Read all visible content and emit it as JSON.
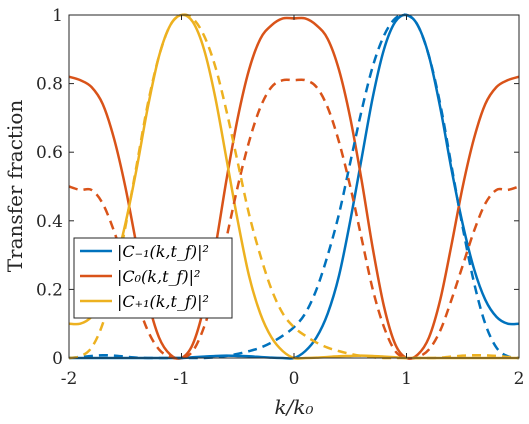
{
  "chart_data": {
    "type": "line",
    "xlabel": "k/k₀",
    "ylabel": "Transfer fraction",
    "xlim": [
      -2,
      2
    ],
    "ylim": [
      0,
      1
    ],
    "x_ticks": [
      -2,
      -1,
      0,
      1,
      2
    ],
    "x_tick_labels": [
      "-2",
      "-1",
      "0",
      "1",
      "2"
    ],
    "y_ticks": [
      0,
      0.2,
      0.4,
      0.6,
      0.8,
      1
    ],
    "y_tick_labels": [
      "0",
      "0.2",
      "0.4",
      "0.6",
      "0.8",
      "1"
    ],
    "grid": false,
    "legend_position": "lower-left",
    "x": [
      -2.0,
      -1.9,
      -1.8,
      -1.7,
      -1.6,
      -1.5,
      -1.4,
      -1.3,
      -1.2,
      -1.1,
      -1.0,
      -0.9,
      -0.8,
      -0.7,
      -0.6,
      -0.5,
      -0.4,
      -0.3,
      -0.2,
      -0.1,
      0.0,
      0.1,
      0.2,
      0.3,
      0.4,
      0.5,
      0.6,
      0.7,
      0.8,
      0.9,
      1.0,
      1.1,
      1.2,
      1.3,
      1.4,
      1.5,
      1.6,
      1.7,
      1.8,
      1.9,
      2.0
    ],
    "series": [
      {
        "name": "|C₋₁(k,t_f)|²",
        "color": "#0072BD",
        "style": "solid",
        "values": [
          0.0,
          0.0,
          0.0,
          0.0,
          0.0,
          0.0,
          0.0,
          0.0,
          0.0,
          0.0,
          0.0,
          0.002,
          0.004,
          0.006,
          0.007,
          0.006,
          0.005,
          0.003,
          0.001,
          0.0,
          0.0,
          0.02,
          0.06,
          0.13,
          0.24,
          0.4,
          0.58,
          0.76,
          0.9,
          0.98,
          1.0,
          0.97,
          0.88,
          0.73,
          0.55,
          0.39,
          0.26,
          0.17,
          0.12,
          0.1,
          0.1
        ]
      },
      {
        "name": "|C₀(k,t_f)|²",
        "color": "#D95319",
        "style": "solid",
        "values": [
          0.82,
          0.81,
          0.79,
          0.74,
          0.64,
          0.5,
          0.33,
          0.17,
          0.06,
          0.01,
          0.0,
          0.04,
          0.15,
          0.32,
          0.52,
          0.7,
          0.84,
          0.93,
          0.97,
          0.99,
          0.99,
          0.99,
          0.97,
          0.93,
          0.84,
          0.7,
          0.52,
          0.32,
          0.15,
          0.04,
          0.0,
          0.01,
          0.06,
          0.17,
          0.33,
          0.5,
          0.64,
          0.74,
          0.79,
          0.81,
          0.82
        ]
      },
      {
        "name": "|C₊₁(k,t_f)|²",
        "color": "#EDB120",
        "style": "solid",
        "values": [
          0.1,
          0.1,
          0.12,
          0.17,
          0.26,
          0.39,
          0.55,
          0.73,
          0.88,
          0.97,
          1.0,
          0.98,
          0.9,
          0.76,
          0.58,
          0.4,
          0.24,
          0.13,
          0.06,
          0.02,
          0.0,
          0.0,
          0.001,
          0.003,
          0.005,
          0.006,
          0.007,
          0.006,
          0.004,
          0.002,
          0.0,
          0.0,
          0.0,
          0.0,
          0.0,
          0.0,
          0.0,
          0.0,
          0.0,
          0.0,
          0.0
        ]
      },
      {
        "name": "",
        "color": "#0072BD",
        "style": "dashed",
        "values": [
          0.0,
          0.003,
          0.006,
          0.008,
          0.007,
          0.004,
          0.001,
          0.0,
          0.0,
          0.0,
          0.0,
          0.0,
          0.0,
          0.002,
          0.006,
          0.012,
          0.02,
          0.03,
          0.045,
          0.065,
          0.09,
          0.13,
          0.2,
          0.3,
          0.42,
          0.57,
          0.72,
          0.85,
          0.94,
          0.99,
          1.0,
          0.97,
          0.88,
          0.74,
          0.56,
          0.38,
          0.22,
          0.1,
          0.03,
          0.005,
          0.0
        ]
      },
      {
        "name": "",
        "color": "#D95319",
        "style": "dashed",
        "values": [
          0.5,
          0.49,
          0.49,
          0.45,
          0.37,
          0.27,
          0.17,
          0.08,
          0.025,
          0.003,
          0.0,
          0.02,
          0.09,
          0.2,
          0.35,
          0.5,
          0.63,
          0.73,
          0.79,
          0.81,
          0.81,
          0.81,
          0.79,
          0.73,
          0.63,
          0.5,
          0.35,
          0.2,
          0.09,
          0.02,
          0.0,
          0.003,
          0.025,
          0.08,
          0.17,
          0.27,
          0.37,
          0.45,
          0.49,
          0.49,
          0.5
        ]
      },
      {
        "name": "",
        "color": "#EDB120",
        "style": "dashed",
        "values": [
          0.0,
          0.005,
          0.03,
          0.1,
          0.22,
          0.38,
          0.56,
          0.74,
          0.88,
          0.97,
          1.0,
          0.99,
          0.94,
          0.85,
          0.72,
          0.57,
          0.42,
          0.3,
          0.2,
          0.13,
          0.09,
          0.065,
          0.045,
          0.03,
          0.02,
          0.012,
          0.006,
          0.002,
          0.0,
          0.0,
          0.0,
          0.0,
          0.0,
          0.001,
          0.004,
          0.007,
          0.008,
          0.008,
          0.006,
          0.003,
          0.0
        ]
      }
    ]
  }
}
